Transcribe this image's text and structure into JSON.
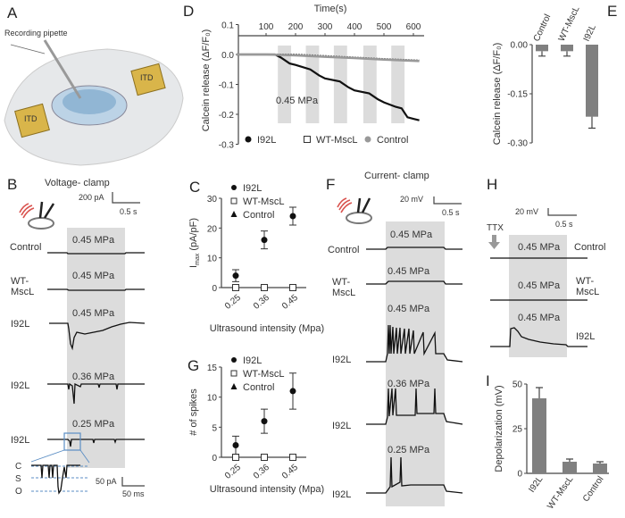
{
  "panels": {
    "A": {
      "label": "A",
      "pipette_label": "Recording pipette",
      "itd_left": "ITD",
      "itd_right": "ITD"
    },
    "B": {
      "label": "B",
      "title": "Voltage- clamp",
      "scale_y": "200 pA",
      "scale_x": "0.5 s",
      "traces": [
        {
          "name": "Control",
          "pressure": "0.45 MPa"
        },
        {
          "name": "WT-",
          "name2": "MscL",
          "pressure": "0.45 MPa"
        },
        {
          "name": "I92L",
          "pressure": "0.45 MPa"
        },
        {
          "name": "I92L",
          "pressure": "0.36 MPa"
        },
        {
          "name": "I92L",
          "pressure": "0.25 MPa"
        }
      ],
      "inset": {
        "levels": [
          "C",
          "S",
          "O"
        ],
        "scale_y": "50 pA",
        "scale_x": "50 ms"
      }
    },
    "F": {
      "label": "F",
      "title": "Current- clamp",
      "scale_y": "20 mV",
      "scale_x": "0.5 s",
      "traces": [
        {
          "name": "Control",
          "pressure": "0.45 MPa"
        },
        {
          "name": "WT-",
          "name2": "MscL",
          "pressure": "0.45 MPa"
        },
        {
          "name": "I92L",
          "pressure": "0.45 MPa"
        },
        {
          "name": "I92L",
          "pressure": "0.36 MPa"
        },
        {
          "name": "I92L",
          "pressure": "0.25 MPa"
        }
      ]
    },
    "H": {
      "label": "H",
      "scale_y": "20 mV",
      "scale_x": "0.5 s",
      "drug": "TTX",
      "traces": [
        {
          "name": "Control",
          "pressure": "0.45 MPa"
        },
        {
          "name": "WT-",
          "name2": "MscL",
          "pressure": "0.45 MPa"
        },
        {
          "name": "I92L",
          "pressure": "0.45 MPa"
        }
      ]
    }
  },
  "colors": {
    "shade": "#dcdcdc",
    "bar": "#808080",
    "inset_box": "#5b8ec4",
    "ultrasound": "#d9534f"
  },
  "chart_data": [
    {
      "id": "D",
      "label": "D",
      "type": "line",
      "title": "",
      "xlabel": "Time(s)",
      "ylabel": "Calcein release (ΔF/F₀)",
      "xticks": [
        "100",
        "200",
        "300",
        "400",
        "500",
        "600"
      ],
      "yticks": [
        "0.1",
        "0.0",
        "-0.1",
        "-0.2",
        "-0.3"
      ],
      "xlim": [
        0,
        630
      ],
      "ylim": [
        -0.3,
        0.1
      ],
      "annotation": "0.45 MPa",
      "stim_windows_s": [
        [
          140,
          185
        ],
        [
          235,
          280
        ],
        [
          330,
          375
        ],
        [
          430,
          475
        ],
        [
          525,
          570
        ]
      ],
      "legend": [
        "I92L",
        "WT-MscL",
        "Control"
      ],
      "legend_position": "bottom",
      "series": [
        {
          "name": "I92L",
          "x": [
            0,
            50,
            100,
            130,
            150,
            180,
            200,
            250,
            280,
            300,
            350,
            380,
            400,
            450,
            480,
            500,
            540,
            560,
            580,
            600,
            620
          ],
          "y": [
            0,
            0,
            0,
            0,
            -0.01,
            -0.03,
            -0.035,
            -0.05,
            -0.07,
            -0.08,
            -0.09,
            -0.11,
            -0.12,
            -0.13,
            -0.15,
            -0.16,
            -0.175,
            -0.18,
            -0.21,
            -0.215,
            -0.22
          ]
        },
        {
          "name": "WT-MscL",
          "x": [
            0,
            100,
            200,
            300,
            400,
            500,
            620
          ],
          "y": [
            0,
            0,
            0,
            -0.005,
            -0.01,
            -0.015,
            -0.02
          ]
        },
        {
          "name": "Control",
          "x": [
            0,
            100,
            200,
            300,
            400,
            500,
            620
          ],
          "y": [
            0,
            0,
            -0.003,
            -0.008,
            -0.012,
            -0.017,
            -0.022
          ]
        }
      ]
    },
    {
      "id": "E",
      "label": "E",
      "type": "bar",
      "ylabel": "Calcein release (ΔF/F₀)",
      "categories": [
        "Control",
        "WT-MscL",
        "I92L"
      ],
      "values": [
        -0.02,
        -0.02,
        -0.22
      ],
      "errors": [
        0.015,
        0.015,
        0.035
      ],
      "yticks": [
        "0.00",
        "-0.15",
        "-0.30"
      ],
      "ylim": [
        -0.3,
        0
      ]
    },
    {
      "id": "C",
      "label": "C",
      "type": "scatter",
      "xlabel": "Ultrasound intensity (Mpa)",
      "ylabel": "I",
      "ylabel_sub": "max",
      "ylabel_unit": "(pA/pF)",
      "categories": [
        "0.25",
        "0.36",
        "0.45"
      ],
      "yticks": [
        "0",
        "10",
        "20",
        "30"
      ],
      "ylim": [
        0,
        30
      ],
      "legend": [
        "I92L",
        "WT-MscL",
        "Control"
      ],
      "legend_position": "top-left",
      "series": [
        {
          "name": "I92L",
          "values": [
            4,
            16,
            24
          ],
          "errors": [
            2,
            3,
            3
          ]
        },
        {
          "name": "WT-MscL",
          "values": [
            0,
            0,
            0
          ],
          "errors": [
            0,
            0,
            0
          ]
        },
        {
          "name": "Control",
          "values": [
            0,
            0,
            0
          ],
          "errors": [
            0,
            0,
            0
          ]
        }
      ]
    },
    {
      "id": "G",
      "label": "G",
      "type": "scatter",
      "xlabel": "Ultrasound intensity (Mpa)",
      "ylabel": "# of spikes",
      "categories": [
        "0.25",
        "0.36",
        "0.45"
      ],
      "yticks": [
        "0",
        "5",
        "10",
        "15"
      ],
      "ylim": [
        0,
        15
      ],
      "legend": [
        "I92L",
        "WT-MscL",
        "Control"
      ],
      "legend_position": "top-left",
      "series": [
        {
          "name": "I92L",
          "values": [
            2,
            6,
            11
          ],
          "errors": [
            1.5,
            2,
            3
          ]
        },
        {
          "name": "WT-MscL",
          "values": [
            0,
            0,
            0
          ],
          "errors": [
            0,
            0,
            0
          ]
        },
        {
          "name": "Control",
          "values": [
            0,
            0,
            0
          ],
          "errors": [
            0,
            0,
            0
          ]
        }
      ]
    },
    {
      "id": "I",
      "label": "I",
      "type": "bar",
      "ylabel": "Depolarization (mV)",
      "categories": [
        "I92L",
        "WT-MscL",
        "Control"
      ],
      "values": [
        42,
        6.5,
        5.5
      ],
      "errors": [
        6,
        1.5,
        1
      ],
      "yticks": [
        "0",
        "25",
        "50"
      ],
      "ylim": [
        0,
        50
      ]
    }
  ]
}
